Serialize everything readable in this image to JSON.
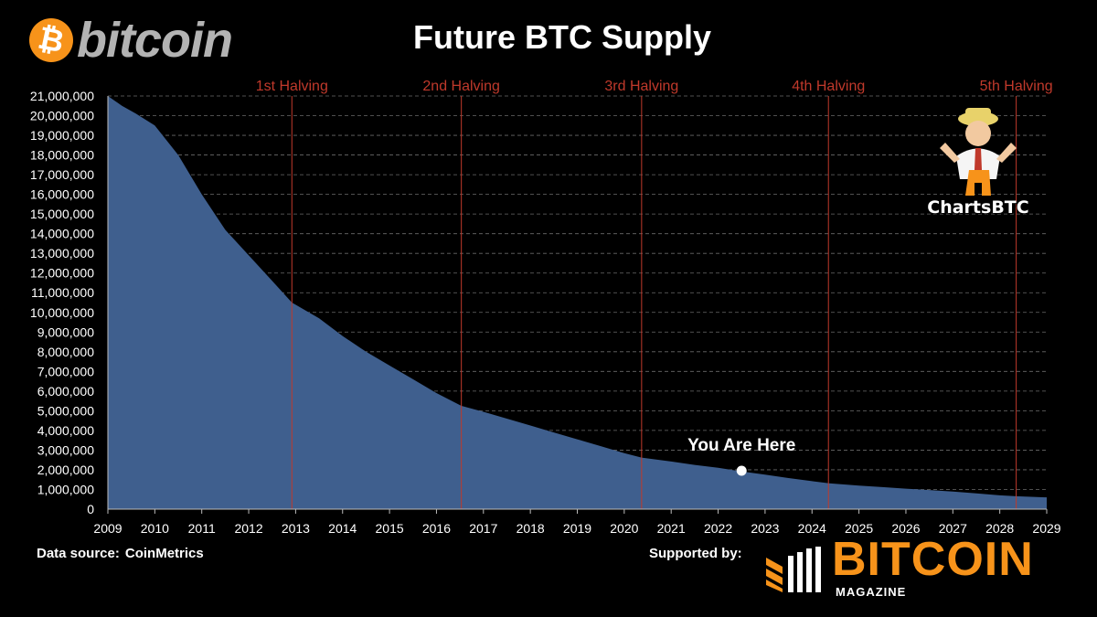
{
  "header": {
    "logo_glyph": "₿",
    "logo_text": "bitcoin",
    "brand_color": "#f7931a"
  },
  "footer": {
    "source_label": "Data source:",
    "source_name": "CoinMetrics",
    "supported_label": "Supported by:",
    "sponsor_name": "BITCOIN",
    "sponsor_sub": "MAGAZINE"
  },
  "mascot": {
    "label": "ChartsBTC"
  },
  "chart_data": {
    "type": "area",
    "title": "Future BTC Supply",
    "xlabel": "",
    "ylabel": "",
    "x_ticks": [
      2009,
      2010,
      2011,
      2012,
      2013,
      2014,
      2015,
      2016,
      2017,
      2018,
      2019,
      2020,
      2021,
      2022,
      2023,
      2024,
      2025,
      2026,
      2027,
      2028,
      2029
    ],
    "xlim": [
      2009,
      2029
    ],
    "ylim": [
      0,
      21000000
    ],
    "y_ticks": [
      0,
      1000000,
      2000000,
      3000000,
      4000000,
      5000000,
      6000000,
      7000000,
      8000000,
      9000000,
      10000000,
      11000000,
      12000000,
      13000000,
      14000000,
      15000000,
      16000000,
      17000000,
      18000000,
      19000000,
      20000000,
      21000000
    ],
    "y_tick_labels": [
      "0",
      "1,000,000",
      "2,000,000",
      "3,000,000",
      "4,000,000",
      "5,000,000",
      "6,000,000",
      "7,000,000",
      "8,000,000",
      "9,000,000",
      "10,000,000",
      "11,000,000",
      "12,000,000",
      "13,000,000",
      "14,000,000",
      "15,000,000",
      "16,000,000",
      "17,000,000",
      "18,000,000",
      "19,000,000",
      "20,000,000",
      "21,000,000"
    ],
    "grid": true,
    "series": [
      {
        "color": "#3f5f8e",
        "x": [
          2009.0,
          2009.3,
          2009.6,
          2010.0,
          2010.5,
          2011.0,
          2011.5,
          2012.0,
          2012.5,
          2012.92,
          2013.5,
          2014.0,
          2014.5,
          2015.0,
          2015.5,
          2016.0,
          2016.53,
          2017.0,
          2017.5,
          2018.0,
          2018.5,
          2019.0,
          2019.5,
          2020.0,
          2020.37,
          2021.0,
          2021.5,
          2022.0,
          2022.5,
          2023.0,
          2023.5,
          2024.0,
          2024.37,
          2025.0,
          2025.5,
          2026.0,
          2026.5,
          2027.0,
          2027.5,
          2028.0,
          2028.35,
          2029.0
        ],
        "y": [
          21000000,
          20500000,
          20100000,
          19500000,
          18000000,
          16000000,
          14200000,
          12900000,
          11600000,
          10500000,
          9700000,
          8800000,
          8000000,
          7300000,
          6600000,
          5900000,
          5250000,
          4950000,
          4600000,
          4250000,
          3900000,
          3550000,
          3200000,
          2850000,
          2620000,
          2420000,
          2250000,
          2100000,
          1920000,
          1750000,
          1580000,
          1420000,
          1310000,
          1200000,
          1120000,
          1040000,
          970000,
          890000,
          800000,
          700000,
          655000,
          600000
        ]
      }
    ],
    "halvings": [
      {
        "label": "1st Halving",
        "x": 2012.92
      },
      {
        "label": "2nd Halving",
        "x": 2016.53
      },
      {
        "label": "3rd Halving",
        "x": 2020.37
      },
      {
        "label": "4th Halving",
        "x": 2024.35
      },
      {
        "label": "5th Halving",
        "x": 2028.35
      }
    ],
    "halving_color": "#c0392b",
    "annotation": {
      "text": "You Are Here",
      "x": 2022.5,
      "y": 1950000
    }
  }
}
